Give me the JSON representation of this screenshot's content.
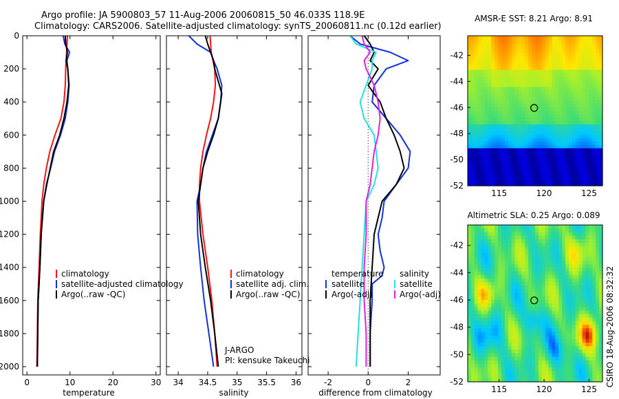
{
  "header": {
    "line1": "Argo profile: JA 5900803_57 11-Aug-2006 20060815_50 46.033S 118.9E",
    "line2": "Climatology: CARS2006. Satellite-adjusted climatology: synTS_20060811.nc (0.12d earlier)"
  },
  "footer": {
    "pi_label": "J-ARGO",
    "pi_name": "PI: kensuke Takeuchi",
    "side_stamp": "CSIRO 18-Aug-2006 08:32:32"
  },
  "colors": {
    "climatology": "#ff1010",
    "satellite": "#1030e0",
    "argo": "#000000",
    "salinity_sat": "#20e0e0",
    "salinity_argo": "#e020e0"
  },
  "chart_data": [
    {
      "type": "line",
      "id": "temperature",
      "xlabel": "temperature",
      "ylabel": "",
      "xlim": [
        -1,
        31
      ],
      "ylim": [
        2050,
        0
      ],
      "xticks": [
        0,
        10,
        20,
        30
      ],
      "yticks": [
        0,
        200,
        400,
        600,
        800,
        1000,
        1200,
        1400,
        1600,
        1800,
        2000
      ],
      "legend": [
        "climatology",
        "satellite-adjusted climatology",
        "Argo(..raw -QC)"
      ],
      "series": [
        {
          "name": "climatology",
          "depth": [
            0,
            100,
            200,
            300,
            400,
            500,
            600,
            700,
            800,
            900,
            1000,
            1200,
            1400,
            1600,
            1800,
            2000
          ],
          "values": [
            9.4,
            9.2,
            9.0,
            8.9,
            8.6,
            7.9,
            6.5,
            5.3,
            4.5,
            3.9,
            3.5,
            3.1,
            2.8,
            2.5,
            2.4,
            2.3
          ]
        },
        {
          "name": "satellite",
          "depth": [
            0,
            50,
            100,
            150,
            200,
            300,
            400,
            500,
            600,
            700,
            800,
            900,
            1000,
            1200,
            1400,
            1600,
            1800,
            2000
          ],
          "values": [
            8.4,
            8.8,
            9.9,
            9.3,
            9.5,
            9.8,
            9.5,
            8.9,
            7.8,
            6.4,
            5.5,
            4.5,
            3.9,
            3.3,
            3.0,
            2.6,
            2.5,
            2.4
          ]
        },
        {
          "name": "Argo",
          "depth": [
            0,
            50,
            100,
            150,
            200,
            300,
            400,
            500,
            600,
            700,
            800,
            900,
            1000,
            1200,
            1400,
            1500,
            1600,
            1800,
            2000
          ],
          "values": [
            8.9,
            9.0,
            9.4,
            9.1,
            9.5,
            9.7,
            9.3,
            8.6,
            7.6,
            6.2,
            5.4,
            4.6,
            3.9,
            3.3,
            3.0,
            2.8,
            2.6,
            2.5,
            2.4
          ]
        }
      ]
    },
    {
      "type": "line",
      "id": "salinity",
      "xlabel": "salinity",
      "ylabel": "",
      "xlim": [
        33.8,
        36.1
      ],
      "ylim": [
        2050,
        0
      ],
      "xticks": [
        34,
        34.5,
        35,
        35.5,
        36
      ],
      "legend": [
        "climatology",
        "satellite adj. clim.",
        "Argo(..raw -QC)"
      ],
      "series": [
        {
          "name": "climatology",
          "depth": [
            0,
            100,
            200,
            300,
            400,
            500,
            600,
            700,
            800,
            900,
            1000,
            1200,
            1400,
            1600,
            1800,
            2000
          ],
          "values": [
            34.54,
            34.56,
            34.62,
            34.63,
            34.6,
            34.55,
            34.48,
            34.42,
            34.38,
            34.36,
            34.36,
            34.42,
            34.5,
            34.57,
            34.62,
            34.66
          ]
        },
        {
          "name": "satellite",
          "depth": [
            0,
            50,
            100,
            150,
            200,
            300,
            400,
            500,
            600,
            700,
            800,
            900,
            1000,
            1200,
            1400,
            1600,
            1800,
            2000
          ],
          "values": [
            34.18,
            34.32,
            34.55,
            34.6,
            34.66,
            34.74,
            34.72,
            34.68,
            34.58,
            34.48,
            34.42,
            34.38,
            34.32,
            34.33,
            34.38,
            34.44,
            34.52,
            34.6
          ]
        },
        {
          "name": "Argo",
          "depth": [
            0,
            50,
            100,
            150,
            200,
            300,
            350,
            400,
            500,
            600,
            700,
            800,
            900,
            1000,
            1200,
            1400,
            1600,
            1800,
            2000
          ],
          "values": [
            34.46,
            34.5,
            34.55,
            34.6,
            34.62,
            34.7,
            34.74,
            34.72,
            34.68,
            34.6,
            34.5,
            34.42,
            34.38,
            34.34,
            34.38,
            34.46,
            34.55,
            34.62,
            34.68
          ]
        }
      ]
    },
    {
      "type": "line",
      "id": "difference",
      "xlabel": "difference from climatology",
      "ylabel": "",
      "xlim": [
        -3,
        3.6
      ],
      "ylim": [
        2050,
        0
      ],
      "xticks": [
        -2,
        0,
        2
      ],
      "legend_temperature": [
        "temperature",
        "satellite",
        "Argo(-adj)"
      ],
      "legend_salinity": [
        "salinity",
        "satellite",
        "Argo(-adj)"
      ],
      "series": [
        {
          "name": "temperature satellite",
          "depth": [
            0,
            50,
            100,
            150,
            200,
            300,
            400,
            500,
            600,
            700,
            800,
            900,
            1000,
            1100,
            1200,
            1300,
            1400,
            1450,
            1500,
            1600,
            1800,
            2000
          ],
          "values": [
            -0.9,
            -0.4,
            1.1,
            2.0,
            0.9,
            0.3,
            0.2,
            0.9,
            1.6,
            2.1,
            2.0,
            1.4,
            0.8,
            0.7,
            0.5,
            0.6,
            0.8,
            0.7,
            0.2,
            0.2,
            0.1,
            0.1
          ]
        },
        {
          "name": "temperature Argo",
          "depth": [
            0,
            50,
            100,
            150,
            200,
            300,
            400,
            500,
            600,
            700,
            800,
            900,
            1000,
            1100,
            1200,
            1400,
            1600,
            1800,
            2000
          ],
          "values": [
            -0.2,
            0.1,
            0.3,
            0.1,
            0.5,
            0.0,
            0.6,
            0.9,
            1.3,
            1.6,
            1.8,
            1.4,
            0.7,
            0.5,
            0.3,
            0.2,
            0.1,
            0.1,
            0.1
          ]
        },
        {
          "name": "salinity satellite",
          "depth": [
            0,
            50,
            100,
            150,
            200,
            300,
            400,
            500,
            600,
            700,
            800,
            900,
            1000,
            1200,
            1400,
            1600,
            1800,
            2000
          ],
          "values": [
            -0.9,
            -0.6,
            0.4,
            0.2,
            0.2,
            -0.1,
            -0.4,
            -0.2,
            0.3,
            0.4,
            0.5,
            0.3,
            -0.1,
            -0.2,
            -0.3,
            -0.4,
            -0.5,
            -0.6
          ]
        },
        {
          "name": "salinity Argo",
          "depth": [
            0,
            50,
            100,
            150,
            200,
            300,
            400,
            500,
            600,
            700,
            800,
            900,
            1000,
            1200,
            1400,
            1600,
            1800,
            2000
          ],
          "values": [
            -0.3,
            -0.2,
            0.1,
            -0.2,
            -0.1,
            0.3,
            0.5,
            0.6,
            0.5,
            0.3,
            0.2,
            0.1,
            -0.1,
            -0.1,
            -0.2,
            -0.2,
            -0.1,
            -0.1
          ]
        }
      ]
    },
    {
      "type": "heatmap",
      "id": "amsre-sst",
      "title": "AMSR-E SST: 8.21 Argo: 8.91",
      "xlim": [
        111.5,
        126.5
      ],
      "ylim": [
        -52,
        -40.5
      ],
      "xticks": [
        115,
        120,
        125
      ],
      "yticks": [
        -42,
        -44,
        -46,
        -48,
        -50,
        -52
      ],
      "marker": {
        "lon": 118.9,
        "lat": -46.033
      }
    },
    {
      "type": "heatmap",
      "id": "altimetric-sla",
      "title": "Altimetric SLA: 0.25 Argo: 0.089",
      "xlim": [
        111.5,
        126.5
      ],
      "ylim": [
        -52,
        -40.5
      ],
      "xticks": [
        115,
        120,
        125
      ],
      "yticks": [
        -42,
        -44,
        -46,
        -48,
        -50,
        -52
      ],
      "marker": {
        "lon": 118.9,
        "lat": -46.033
      }
    }
  ]
}
